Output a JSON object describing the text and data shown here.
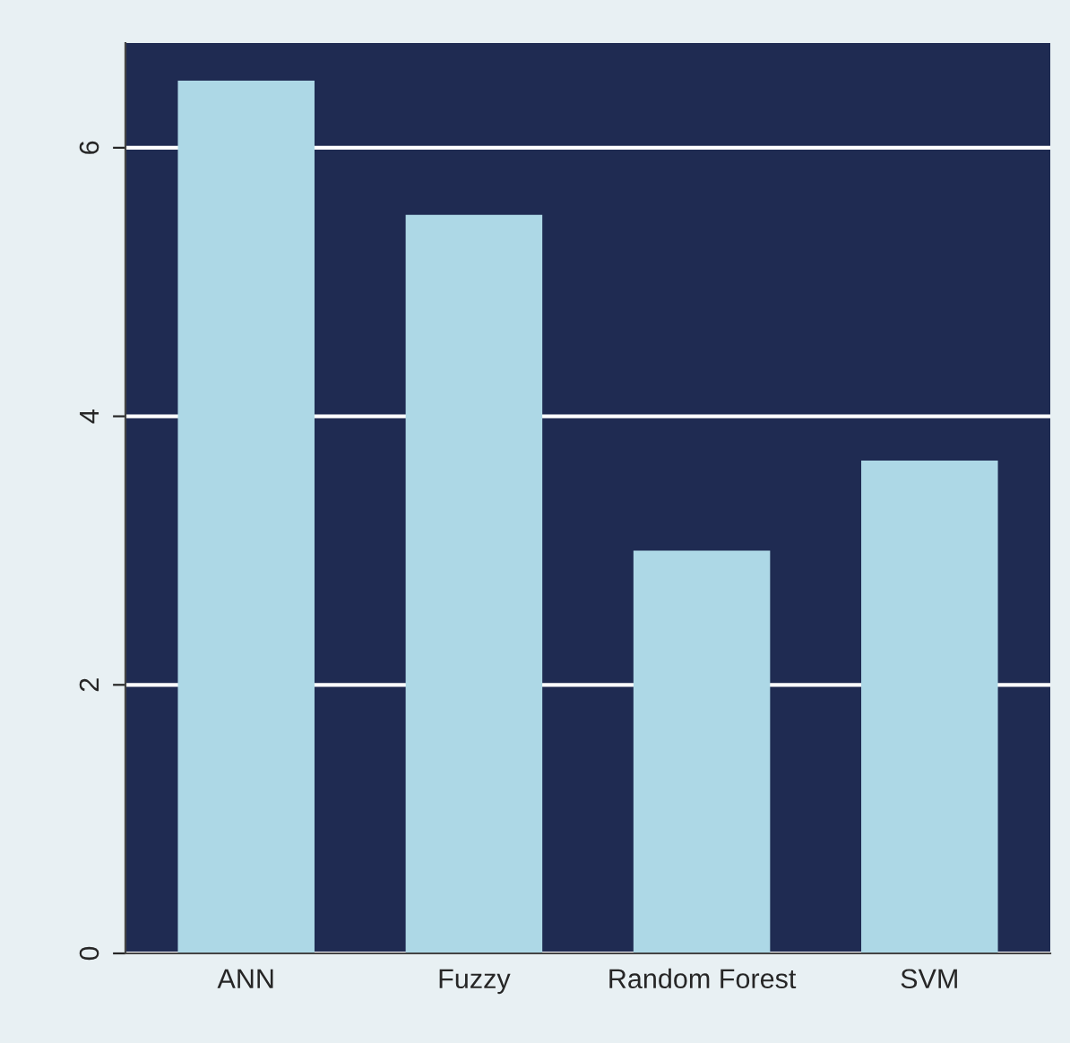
{
  "chart_data": {
    "type": "bar",
    "categories": [
      "ANN",
      "Fuzzy",
      "Random Forest",
      "SVM"
    ],
    "values": [
      6.5,
      5.5,
      3.0,
      3.67
    ],
    "color": "#add8e6",
    "ylim": [
      0,
      6.78
    ],
    "yticks": [
      0,
      2,
      4,
      6
    ],
    "grid": "y"
  }
}
